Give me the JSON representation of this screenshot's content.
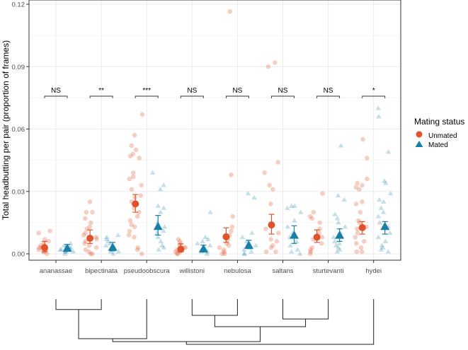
{
  "chart_data": {
    "type": "scatter",
    "ylabel": "Total headbutting per pair (proportion of frames)",
    "xlabel": "",
    "ylim": [
      0,
      0.12
    ],
    "yticks": [
      "0.00",
      "0.03",
      "0.06",
      "0.09",
      "0.12"
    ],
    "grid": true,
    "legend": {
      "title": "Mating status",
      "position": "right",
      "entries": [
        "Unmated",
        "Mated"
      ]
    },
    "colors": {
      "Unmated": "#E0532A",
      "Mated": "#177FA6"
    },
    "categories": [
      "ananassae",
      "bipectinata",
      "pseudoobscura",
      "willistoni",
      "nebulosa",
      "saltans",
      "sturtevanti",
      "hydei"
    ],
    "significance": [
      "NS",
      "**",
      "***",
      "NS",
      "NS",
      "NS",
      "NS",
      "*"
    ],
    "series": [
      {
        "name": "Unmated",
        "mean": [
          0.003,
          0.0075,
          0.024,
          0.0022,
          0.0082,
          0.0139,
          0.008,
          0.0126
        ],
        "error_low": [
          0.001,
          0.005,
          0.02,
          0.001,
          0.0055,
          0.0095,
          0.0055,
          0.0095
        ],
        "error_high": [
          0.006,
          0.0115,
          0.0285,
          0.0048,
          0.0125,
          0.019,
          0.0115,
          0.0155
        ],
        "points": [
          [
            0.001,
            0.002,
            0.003,
            0.004,
            0.005,
            0.007,
            0.01,
            0.011,
            0.002,
            0.001,
            0.003,
            0.006,
            0.0,
            0.002
          ],
          [
            0.025,
            0.02,
            0.02,
            0.017,
            0.015,
            0.013,
            0.01,
            0.009,
            0.008,
            0.007,
            0.005,
            0.004,
            0.003,
            0.002,
            0.001,
            0.0,
            0.0,
            0.012,
            0.006
          ],
          [
            0.067,
            0.057,
            0.052,
            0.05,
            0.048,
            0.047,
            0.046,
            0.039,
            0.037,
            0.036,
            0.033,
            0.031,
            0.028,
            0.027,
            0.025,
            0.024,
            0.022,
            0.02,
            0.018,
            0.016,
            0.014,
            0.013,
            0.011,
            0.009,
            0.008,
            0.003,
            0.002,
            0.0
          ],
          [
            0.007,
            0.006,
            0.005,
            0.004,
            0.003,
            0.002,
            0.001,
            0.0,
            0.002,
            0.003,
            0.001,
            0.0
          ],
          [
            0.1165,
            0.038,
            0.018,
            0.013,
            0.011,
            0.009,
            0.007,
            0.005,
            0.003,
            0.002,
            0.001,
            0.0,
            0.0,
            0.004
          ],
          [
            0.092,
            0.09,
            0.044,
            0.039,
            0.033,
            0.031,
            0.024,
            0.012,
            0.01,
            0.007,
            0.006,
            0.004,
            0.003,
            0.001,
            0.001
          ],
          [
            0.029,
            0.02,
            0.018,
            0.017,
            0.015,
            0.012,
            0.01,
            0.008,
            0.007,
            0.005,
            0.003,
            0.002,
            0.001,
            0.0
          ],
          [
            0.055,
            0.046,
            0.036,
            0.034,
            0.033,
            0.032,
            0.031,
            0.025,
            0.024,
            0.02,
            0.016,
            0.015,
            0.013,
            0.012,
            0.01,
            0.008,
            0.006,
            0.005,
            0.003,
            0.001,
            0.001
          ]
        ]
      },
      {
        "name": "Mated",
        "mean": [
          0.0025,
          0.003,
          0.013,
          0.0022,
          0.004,
          0.0088,
          0.0088,
          0.013
        ],
        "error_low": [
          0.0012,
          0.0015,
          0.009,
          0.001,
          0.0025,
          0.005,
          0.006,
          0.0095
        ],
        "error_high": [
          0.0045,
          0.0055,
          0.0185,
          0.0042,
          0.0065,
          0.0135,
          0.012,
          0.0155
        ],
        "points": [
          [
            0.001,
            0.002,
            0.003,
            0.004,
            0.005,
            0.0,
            0.001,
            0.002,
            0.003,
            0.004,
            0.001,
            0.002
          ],
          [
            0.009,
            0.008,
            0.007,
            0.006,
            0.005,
            0.004,
            0.003,
            0.002,
            0.001,
            0.0,
            0.001,
            0.002,
            0.003
          ],
          [
            0.039,
            0.033,
            0.031,
            0.023,
            0.022,
            0.02,
            0.015,
            0.013,
            0.011,
            0.01,
            0.008,
            0.006,
            0.004,
            0.003,
            0.002
          ],
          [
            0.02,
            0.008,
            0.007,
            0.006,
            0.005,
            0.004,
            0.003,
            0.002,
            0.001,
            0.0,
            0.001,
            0.002
          ],
          [
            0.029,
            0.027,
            0.01,
            0.008,
            0.006,
            0.005,
            0.004,
            0.003,
            0.002,
            0.001,
            0.0,
            0.0
          ],
          [
            0.023,
            0.023,
            0.022,
            0.02,
            0.016,
            0.013,
            0.01,
            0.008,
            0.006,
            0.004,
            0.002,
            0.001,
            0.0
          ],
          [
            0.052,
            0.028,
            0.026,
            0.019,
            0.017,
            0.015,
            0.013,
            0.01,
            0.008,
            0.006,
            0.005,
            0.004,
            0.003,
            0.002,
            0.001
          ],
          [
            0.07,
            0.066,
            0.049,
            0.035,
            0.034,
            0.029,
            0.026,
            0.025,
            0.022,
            0.02,
            0.018,
            0.015,
            0.013,
            0.01,
            0.008,
            0.006,
            0.004,
            0.003,
            0.002,
            0.001
          ]
        ]
      }
    ],
    "dendrogram": {
      "merges": [
        {
          "left": 0,
          "right": 1,
          "height": 0.23
        },
        {
          "left": 3,
          "right": 4,
          "height": 0.36
        },
        {
          "left": 5,
          "right": 6,
          "height": 0.44
        },
        {
          "left": "m1",
          "right": "m2",
          "height": 0.61
        },
        {
          "left": "m0",
          "right": 2,
          "height": 0.875
        },
        {
          "left": "m4",
          "right": "m3",
          "height": 0.94
        },
        {
          "left": "m5",
          "right": 7,
          "height": 1.0
        }
      ]
    }
  }
}
